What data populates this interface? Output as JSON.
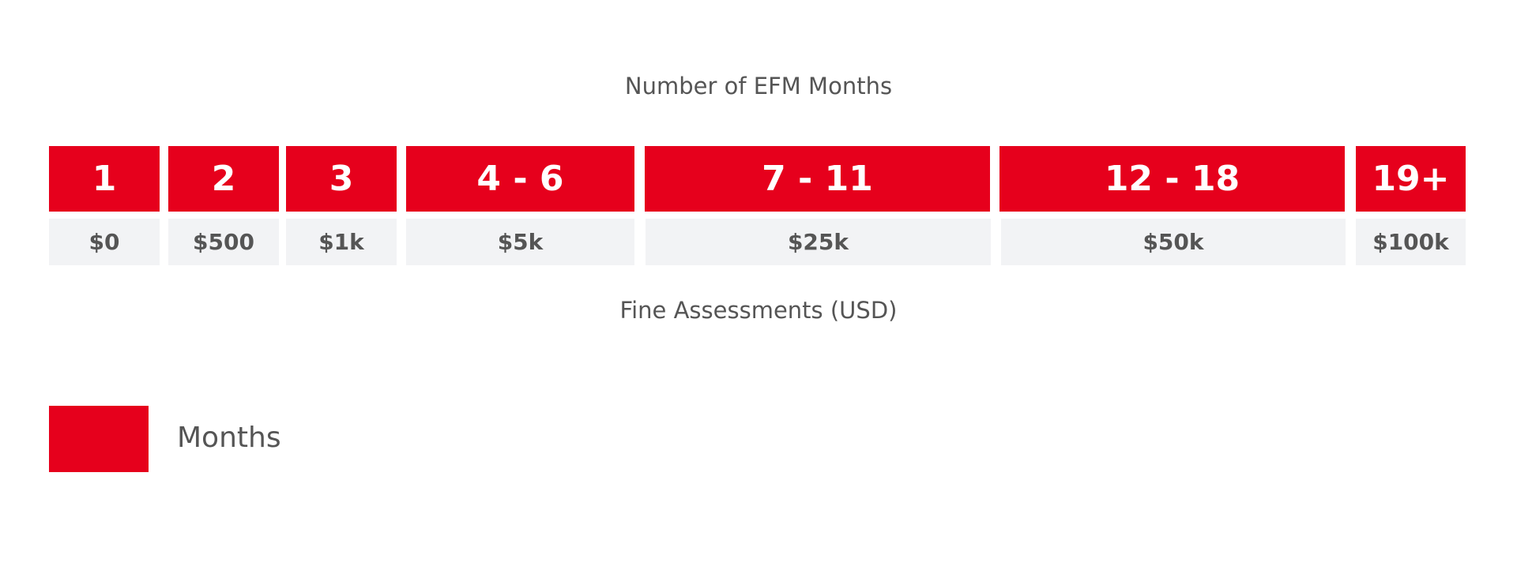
{
  "title": "Number of EFM Months",
  "columns": [
    {
      "months": "1",
      "fine": "$0"
    },
    {
      "months": "2",
      "fine": "$500"
    },
    {
      "months": "3",
      "fine": "$1k"
    },
    {
      "months": "4 - 6",
      "fine": "$5k"
    },
    {
      "months": "7 - 11",
      "fine": "$25k"
    },
    {
      "months": "12 - 18",
      "fine": "$50k"
    },
    {
      "months": "19+",
      "fine": "$100k"
    }
  ],
  "footer": "Fine Assessments (USD)",
  "legend": {
    "label": "Months"
  }
}
